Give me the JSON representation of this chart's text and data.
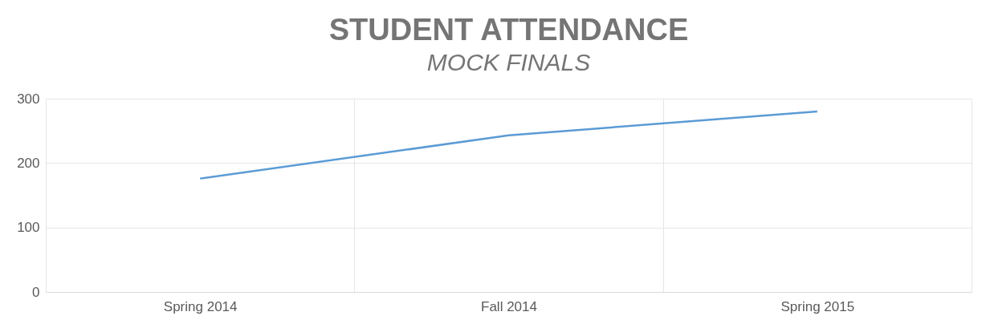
{
  "chart_data": {
    "type": "line",
    "title": "STUDENT ATTENDANCE",
    "subtitle": "MOCK FINALS",
    "categories": [
      "Spring 2014",
      "Fall 2014",
      "Spring 2015"
    ],
    "series": [
      {
        "color": "#5b9bd5",
        "values": [
          176,
          243,
          280
        ]
      }
    ],
    "ylim": [
      0,
      300
    ],
    "yticks": [
      0,
      100,
      200,
      300
    ],
    "grid": true,
    "legend": false,
    "marker": "none",
    "line_style": "solid"
  }
}
